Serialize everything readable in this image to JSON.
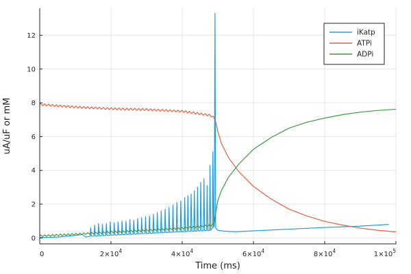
{
  "chart_data": {
    "type": "line",
    "title": "",
    "xlabel": "Time (ms)",
    "ylabel": "uA/uF or mM",
    "xlim": [
      0,
      100000
    ],
    "ylim": [
      -0.35,
      13.6
    ],
    "grid": true,
    "legend_position": "top-right",
    "x_ticks": [
      {
        "value": 0,
        "base": "0",
        "exp": ""
      },
      {
        "value": 20000,
        "base": "2×10",
        "exp": "4"
      },
      {
        "value": 40000,
        "base": "4×10",
        "exp": "4"
      },
      {
        "value": 60000,
        "base": "6×10",
        "exp": "4"
      },
      {
        "value": 80000,
        "base": "8×10",
        "exp": "4"
      },
      {
        "value": 100000,
        "base": "1×10",
        "exp": "5"
      }
    ],
    "y_ticks": [
      {
        "value": 0,
        "label": "0"
      },
      {
        "value": 2,
        "label": "2"
      },
      {
        "value": 4,
        "label": "4"
      },
      {
        "value": 6,
        "label": "6"
      },
      {
        "value": 8,
        "label": "8"
      },
      {
        "value": 10,
        "label": "10"
      },
      {
        "value": 12,
        "label": "12"
      }
    ],
    "series": [
      {
        "name": "iKatp",
        "color": "#1f9de0",
        "points": [
          [
            0,
            0.02
          ],
          [
            5000,
            0.05
          ],
          [
            10000,
            0.15
          ],
          [
            12000,
            0.2
          ],
          [
            13000,
            0.05
          ],
          [
            14000,
            0.1
          ],
          [
            48000,
            0.45
          ],
          [
            48500,
            0.6
          ],
          [
            49000,
            0.7
          ],
          [
            49200,
            13.3
          ],
          [
            49400,
            0.6
          ],
          [
            50000,
            0.45
          ],
          [
            52000,
            0.4
          ],
          [
            55000,
            0.37
          ],
          [
            60000,
            0.42
          ],
          [
            70000,
            0.52
          ],
          [
            80000,
            0.62
          ],
          [
            90000,
            0.7
          ],
          [
            98000,
            0.8
          ]
        ],
        "spikes": [
          {
            "x": 14300,
            "peak": 0.6
          },
          {
            "x": 15400,
            "peak": 0.75
          },
          {
            "x": 16500,
            "peak": 0.85
          },
          {
            "x": 17600,
            "peak": 0.8
          },
          {
            "x": 18700,
            "peak": 0.85
          },
          {
            "x": 19800,
            "peak": 0.95
          },
          {
            "x": 20900,
            "peak": 0.9
          },
          {
            "x": 22000,
            "peak": 0.95
          },
          {
            "x": 23100,
            "peak": 1.0
          },
          {
            "x": 24200,
            "peak": 1.0
          },
          {
            "x": 25300,
            "peak": 1.1
          },
          {
            "x": 26400,
            "peak": 1.05
          },
          {
            "x": 27500,
            "peak": 1.15
          },
          {
            "x": 28600,
            "peak": 1.2
          },
          {
            "x": 29700,
            "peak": 1.25
          },
          {
            "x": 30800,
            "peak": 1.3
          },
          {
            "x": 31900,
            "peak": 1.4
          },
          {
            "x": 33000,
            "peak": 1.5
          },
          {
            "x": 34100,
            "peak": 1.6
          },
          {
            "x": 35200,
            "peak": 1.7
          },
          {
            "x": 36300,
            "peak": 1.8
          },
          {
            "x": 37400,
            "peak": 1.95
          },
          {
            "x": 38500,
            "peak": 2.1
          },
          {
            "x": 39600,
            "peak": 2.2
          },
          {
            "x": 40700,
            "peak": 2.4
          },
          {
            "x": 41600,
            "peak": 2.5
          },
          {
            "x": 42500,
            "peak": 2.6
          },
          {
            "x": 43400,
            "peak": 2.8
          },
          {
            "x": 44300,
            "peak": 3.0
          },
          {
            "x": 45200,
            "peak": 3.3
          },
          {
            "x": 46100,
            "peak": 3.5
          },
          {
            "x": 47000,
            "peak": 3.1
          },
          {
            "x": 47800,
            "peak": 4.3
          },
          {
            "x": 48600,
            "peak": 5.1
          }
        ]
      },
      {
        "name": "ATPi",
        "color": "#e2603a",
        "points": [
          [
            0,
            7.9
          ],
          [
            10000,
            7.75
          ],
          [
            20000,
            7.65
          ],
          [
            30000,
            7.6
          ],
          [
            40000,
            7.5
          ],
          [
            45000,
            7.35
          ],
          [
            48000,
            7.25
          ],
          [
            49000,
            7.1
          ],
          [
            49500,
            6.8
          ],
          [
            50000,
            6.3
          ],
          [
            51000,
            5.6
          ],
          [
            53000,
            4.75
          ],
          [
            56000,
            3.9
          ],
          [
            60000,
            3.05
          ],
          [
            65000,
            2.3
          ],
          [
            70000,
            1.7
          ],
          [
            75000,
            1.3
          ],
          [
            80000,
            0.98
          ],
          [
            85000,
            0.76
          ],
          [
            90000,
            0.58
          ],
          [
            95000,
            0.45
          ],
          [
            100000,
            0.36
          ]
        ],
        "ripple": {
          "from": 0,
          "to": 49000,
          "period": 1100,
          "amplitude": 0.06
        }
      },
      {
        "name": "ADPi",
        "color": "#3a9a3a",
        "points": [
          [
            0,
            0.12
          ],
          [
            10000,
            0.22
          ],
          [
            20000,
            0.35
          ],
          [
            30000,
            0.45
          ],
          [
            40000,
            0.58
          ],
          [
            45000,
            0.68
          ],
          [
            48000,
            0.75
          ],
          [
            49000,
            0.82
          ],
          [
            49500,
            1.6
          ],
          [
            50000,
            2.2
          ],
          [
            51000,
            2.8
          ],
          [
            53000,
            3.6
          ],
          [
            56000,
            4.4
          ],
          [
            60000,
            5.25
          ],
          [
            65000,
            5.95
          ],
          [
            70000,
            6.5
          ],
          [
            75000,
            6.85
          ],
          [
            80000,
            7.1
          ],
          [
            85000,
            7.3
          ],
          [
            90000,
            7.45
          ],
          [
            95000,
            7.55
          ],
          [
            100000,
            7.62
          ]
        ],
        "ripple": {
          "from": 0,
          "to": 49000,
          "period": 1100,
          "amplitude": 0.05
        }
      }
    ]
  }
}
